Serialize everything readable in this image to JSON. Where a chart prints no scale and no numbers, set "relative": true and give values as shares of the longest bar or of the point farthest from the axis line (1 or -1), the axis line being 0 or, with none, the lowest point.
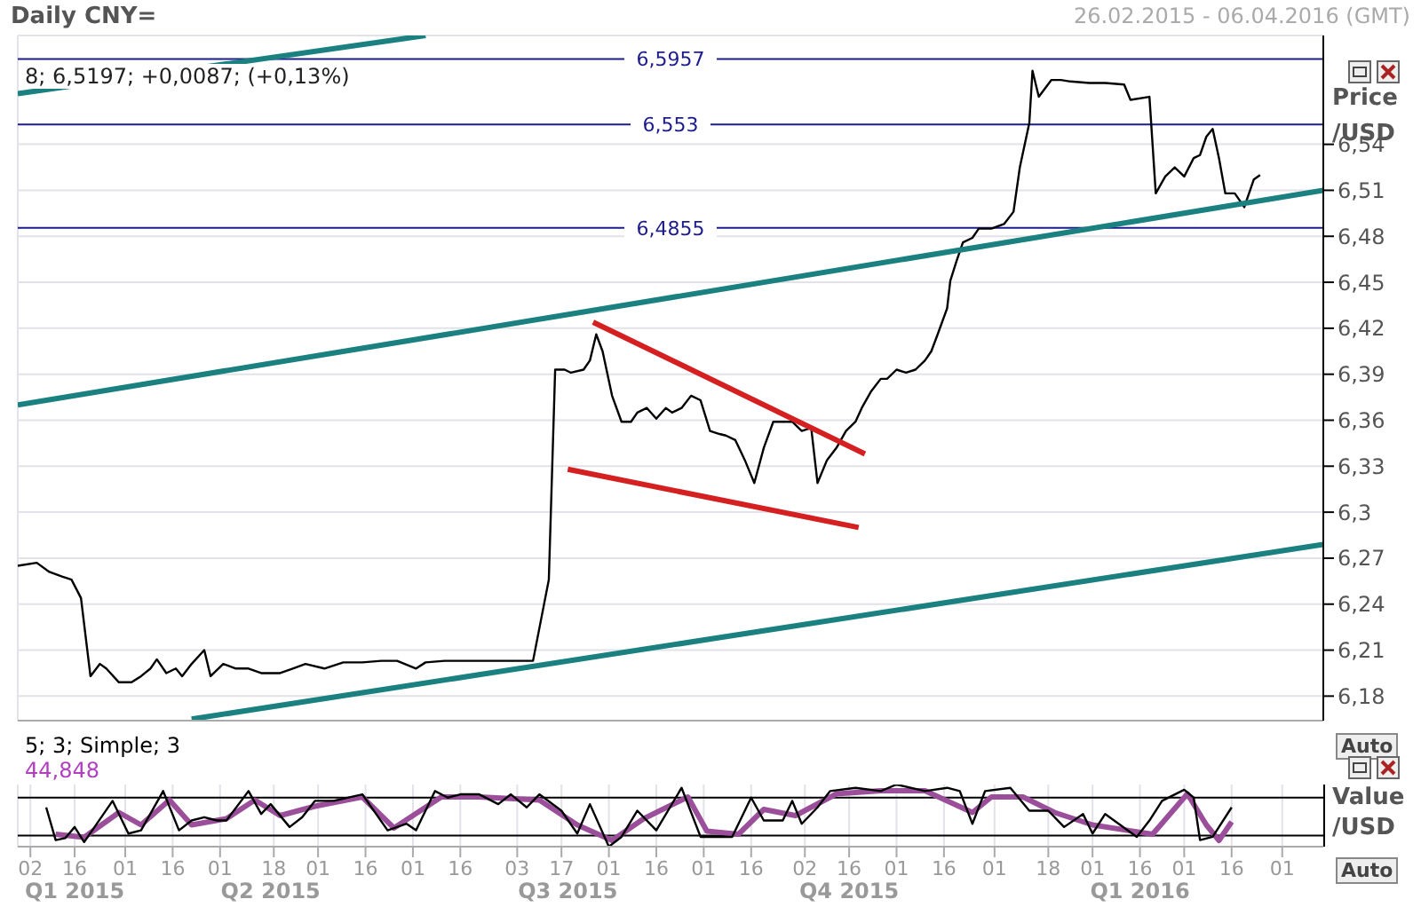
{
  "chart_data": [
    {
      "type": "line",
      "title": "Daily CNY=",
      "subtitle": "26.02.2015 - 06.04.2016 (GMT)",
      "ylabel": "Price /USD",
      "annotations": [
        "8; 6,5197; +0,0087; (+0,13%)",
        "Auto"
      ],
      "xlim": [
        "2015-02-26",
        "2016-04-14"
      ],
      "xticks": [
        {
          "value": "2015-03-02",
          "label": null
        },
        {
          "value": "2015-03-16",
          "label": null
        },
        {
          "value": "2015-04-01",
          "label": null
        },
        {
          "value": "2015-04-16",
          "label": null
        },
        {
          "value": "2015-05-01",
          "label": null
        },
        {
          "value": "2015-05-18",
          "label": null
        },
        {
          "value": "2015-06-01",
          "label": null
        },
        {
          "value": "2015-06-16",
          "label": null
        },
        {
          "value": "2015-07-01",
          "label": null
        },
        {
          "value": "2015-07-16",
          "label": null
        },
        {
          "value": "2015-08-03",
          "label": null
        },
        {
          "value": "2015-08-17",
          "label": null
        },
        {
          "value": "2015-09-01",
          "label": null
        },
        {
          "value": "2015-09-16",
          "label": null
        },
        {
          "value": "2015-10-01",
          "label": null
        },
        {
          "value": "2015-10-16",
          "label": null
        },
        {
          "value": "2015-11-02",
          "label": null
        },
        {
          "value": "2015-11-16",
          "label": null
        },
        {
          "value": "2015-12-01",
          "label": null
        },
        {
          "value": "2015-12-16",
          "label": null
        },
        {
          "value": "2016-01-01",
          "label": null
        },
        {
          "value": "2016-01-18",
          "label": null
        },
        {
          "value": "2016-02-01",
          "label": null
        },
        {
          "value": "2016-02-16",
          "label": null
        },
        {
          "value": "2016-03-01",
          "label": null
        },
        {
          "value": "2016-03-16",
          "label": null
        },
        {
          "value": "2016-04-01",
          "label": null
        }
      ],
      "ylim": [
        6.164,
        6.611
      ],
      "yticks": [
        {
          "value": 6.18,
          "label": "6,18"
        },
        {
          "value": 6.21,
          "label": "6,21"
        },
        {
          "value": 6.24,
          "label": "6,24"
        },
        {
          "value": 6.27,
          "label": "6,27"
        },
        {
          "value": 6.3,
          "label": "6,3"
        },
        {
          "value": 6.33,
          "label": "6,33"
        },
        {
          "value": 6.36,
          "label": "6,36"
        },
        {
          "value": 6.39,
          "label": "6,39"
        },
        {
          "value": 6.42,
          "label": "6,42"
        },
        {
          "value": 6.45,
          "label": "6,45"
        },
        {
          "value": 6.48,
          "label": "6,48"
        },
        {
          "value": 6.51,
          "label": "6,51"
        },
        {
          "value": 6.54,
          "label": "6,54"
        }
      ],
      "tick_labels": "y",
      "grid": true,
      "marker": "none",
      "line_style": "solid",
      "ref_lines": [
        {
          "axis": "y",
          "value": 6.5957,
          "label": "6,5957",
          "color": "#1c1c8c"
        },
        {
          "axis": "y",
          "value": 6.553,
          "label": "6,553",
          "color": "#1c1c8c"
        },
        {
          "axis": "y",
          "value": 6.4855,
          "label": "6,4855",
          "color": "#1c1c8c"
        }
      ],
      "series": [
        {
          "color": "#000000",
          "x": [
            "2015-02-26",
            "2015-03-04",
            "2015-03-08",
            "2015-03-12",
            "2015-03-15",
            "2015-03-18",
            "2015-03-20",
            "2015-03-21",
            "2015-03-24",
            "2015-03-26",
            "2015-03-30",
            "2015-04-03",
            "2015-04-06",
            "2015-04-09",
            "2015-04-11",
            "2015-04-14",
            "2015-04-17",
            "2015-04-19",
            "2015-04-22",
            "2015-04-26",
            "2015-04-28",
            "2015-05-02",
            "2015-05-06",
            "2015-05-10",
            "2015-05-14",
            "2015-05-20",
            "2015-05-24",
            "2015-05-28",
            "2015-06-03",
            "2015-06-09",
            "2015-06-15",
            "2015-06-21",
            "2015-06-26",
            "2015-07-02",
            "2015-07-05",
            "2015-07-11",
            "2015-07-16",
            "2015-07-22",
            "2015-07-28",
            "2015-08-08",
            "2015-08-13",
            "2015-08-15",
            "2015-08-18",
            "2015-08-20",
            "2015-08-24",
            "2015-08-26",
            "2015-08-28",
            "2015-08-30",
            "2015-09-02",
            "2015-09-05",
            "2015-09-08",
            "2015-09-10",
            "2015-09-13",
            "2015-09-16",
            "2015-09-19",
            "2015-09-21",
            "2015-09-24",
            "2015-09-27",
            "2015-09-30",
            "2015-10-03",
            "2015-10-06",
            "2015-10-08",
            "2015-10-11",
            "2015-10-14",
            "2015-10-17",
            "2015-10-20",
            "2015-10-23",
            "2015-10-26",
            "2015-10-29",
            "2015-11-01",
            "2015-11-04",
            "2015-11-06",
            "2015-11-09",
            "2015-11-12",
            "2015-11-15",
            "2015-11-18",
            "2015-11-20",
            "2015-11-23",
            "2015-11-26",
            "2015-11-28",
            "2015-12-01",
            "2015-12-04",
            "2015-12-07",
            "2015-12-10",
            "2015-12-12",
            "2015-12-14",
            "2015-12-17",
            "2015-12-18",
            "2015-12-20",
            "2015-12-22",
            "2015-12-25",
            "2015-12-27",
            "2015-12-31",
            "2016-01-04",
            "2016-01-07",
            "2016-01-09",
            "2016-01-12",
            "2016-01-13",
            "2016-01-15",
            "2016-01-19",
            "2016-01-22",
            "2016-01-25",
            "2016-01-31",
            "2016-02-05",
            "2016-02-11",
            "2016-02-13",
            "2016-02-19",
            "2016-02-21",
            "2016-02-24",
            "2016-02-27",
            "2016-03-01",
            "2016-03-04",
            "2016-03-06",
            "2016-03-08",
            "2016-03-10",
            "2016-03-12",
            "2016-03-14",
            "2016-03-17",
            "2016-03-20",
            "2016-03-23",
            "2016-03-25"
          ],
          "values": [
            6.265,
            6.267,
            6.261,
            6.258,
            6.256,
            6.244,
            6.21,
            6.193,
            6.201,
            6.198,
            6.189,
            6.189,
            6.193,
            6.198,
            6.204,
            6.195,
            6.198,
            6.193,
            6.201,
            6.21,
            6.193,
            6.201,
            6.198,
            6.198,
            6.195,
            6.195,
            6.198,
            6.201,
            6.198,
            6.202,
            6.202,
            6.203,
            6.203,
            6.198,
            6.202,
            6.203,
            6.203,
            6.203,
            6.203,
            6.203,
            6.256,
            6.393,
            6.393,
            6.391,
            6.393,
            6.399,
            6.416,
            6.405,
            6.376,
            6.359,
            6.359,
            6.365,
            6.368,
            6.361,
            6.368,
            6.365,
            6.368,
            6.376,
            6.373,
            6.353,
            6.351,
            6.35,
            6.347,
            6.334,
            6.319,
            6.342,
            6.359,
            6.359,
            6.359,
            6.353,
            6.355,
            6.319,
            6.334,
            6.342,
            6.353,
            6.359,
            6.368,
            6.379,
            6.387,
            6.387,
            6.393,
            6.391,
            6.393,
            6.399,
            6.405,
            6.416,
            6.433,
            6.451,
            6.464,
            6.476,
            6.479,
            6.485,
            6.485,
            6.488,
            6.496,
            6.525,
            6.554,
            6.588,
            6.571,
            6.582,
            6.582,
            6.581,
            6.58,
            6.58,
            6.579,
            6.569,
            6.571,
            6.508,
            6.519,
            6.525,
            6.519,
            6.531,
            6.533,
            6.545,
            6.55,
            6.531,
            6.508,
            6.508,
            6.499,
            6.517,
            6.52
          ]
        },
        {
          "color": "#1a8080",
          "x": [
            "2015-02-26",
            "2015-07-05"
          ],
          "values": [
            6.573,
            6.611
          ]
        },
        {
          "color": "#1a8080",
          "x": [
            "2015-02-26",
            "2016-04-14"
          ],
          "values": [
            6.37,
            6.51
          ]
        },
        {
          "color": "#1a8080",
          "x": [
            "2015-04-22",
            "2016-04-14"
          ],
          "values": [
            6.165,
            6.279
          ]
        },
        {
          "color": "#d42020",
          "x": [
            "2015-08-27",
            "2015-11-21"
          ],
          "values": [
            6.424,
            6.338
          ]
        },
        {
          "color": "#d42020",
          "x": [
            "2015-08-19",
            "2015-11-19"
          ],
          "values": [
            6.328,
            6.29
          ]
        }
      ]
    },
    {
      "type": "line",
      "ylabel": "Value /USD",
      "relative": true,
      "annotations": [
        "5; 3; Simple; 3",
        "44,848",
        "Auto",
        "Q1 2015",
        "Q2 2015",
        "Q3 2015",
        "Q4 2015",
        "Q1 2016"
      ],
      "xlim": [
        "2015-02-26",
        "2016-04-14"
      ],
      "xticks": [
        {
          "value": "2015-03-02",
          "label": "02"
        },
        {
          "value": "2015-03-16",
          "label": "16"
        },
        {
          "value": "2015-04-01",
          "label": "01"
        },
        {
          "value": "2015-04-16",
          "label": "16"
        },
        {
          "value": "2015-05-01",
          "label": "01"
        },
        {
          "value": "2015-05-18",
          "label": "18"
        },
        {
          "value": "2015-06-01",
          "label": "01"
        },
        {
          "value": "2015-06-16",
          "label": "16"
        },
        {
          "value": "2015-07-01",
          "label": "01"
        },
        {
          "value": "2015-07-16",
          "label": "16"
        },
        {
          "value": "2015-08-03",
          "label": "03"
        },
        {
          "value": "2015-08-17",
          "label": "17"
        },
        {
          "value": "2015-09-01",
          "label": "01"
        },
        {
          "value": "2015-09-16",
          "label": "16"
        },
        {
          "value": "2015-10-01",
          "label": "01"
        },
        {
          "value": "2015-10-16",
          "label": "16"
        },
        {
          "value": "2015-11-02",
          "label": "02"
        },
        {
          "value": "2015-11-16",
          "label": "16"
        },
        {
          "value": "2015-12-01",
          "label": "01"
        },
        {
          "value": "2015-12-16",
          "label": "16"
        },
        {
          "value": "2016-01-01",
          "label": "01"
        },
        {
          "value": "2016-01-18",
          "label": "18"
        },
        {
          "value": "2016-02-01",
          "label": "01"
        },
        {
          "value": "2016-02-16",
          "label": "16"
        },
        {
          "value": "2016-03-01",
          "label": "01"
        },
        {
          "value": "2016-03-16",
          "label": "16"
        },
        {
          "value": "2016-04-01",
          "label": "01"
        }
      ],
      "tick_labels": "x",
      "grid": "x",
      "marker": "none",
      "line_style": "solid",
      "ref_lines": [
        {
          "axis": "y",
          "value": 0.789,
          "color": "#000000"
        },
        {
          "axis": "y",
          "value": 0.179,
          "color": "#000000"
        }
      ],
      "series": [
        {
          "color": "#9b4f9b",
          "x": [
            "2015-03-10",
            "2015-03-19",
            "2015-03-30",
            "2015-04-06",
            "2015-04-15",
            "2015-04-22",
            "2015-05-03",
            "2015-05-12",
            "2015-05-20",
            "2015-05-31",
            "2015-06-15",
            "2015-06-25",
            "2015-07-10",
            "2015-07-22",
            "2015-08-10",
            "2015-08-22",
            "2015-09-02",
            "2015-09-12",
            "2015-09-26",
            "2015-10-02",
            "2015-10-12",
            "2015-10-20",
            "2015-10-30",
            "2015-11-12",
            "2015-11-26",
            "2015-12-10",
            "2015-12-25",
            "2015-12-31",
            "2016-01-10",
            "2016-01-20",
            "2016-02-01",
            "2016-02-20",
            "2016-03-02",
            "2016-03-08",
            "2016-03-12",
            "2016-03-16"
          ],
          "values": [
            0.2,
            0.15,
            0.55,
            0.35,
            0.75,
            0.35,
            0.45,
            0.75,
            0.5,
            0.65,
            0.8,
            0.3,
            0.8,
            0.8,
            0.75,
            0.35,
            0.1,
            0.45,
            0.8,
            0.25,
            0.2,
            0.6,
            0.5,
            0.85,
            0.9,
            0.9,
            0.55,
            0.8,
            0.8,
            0.55,
            0.35,
            0.2,
            0.85,
            0.35,
            0.1,
            0.4
          ]
        },
        {
          "color": "#000000",
          "x": [
            "2015-03-07",
            "2015-03-10",
            "2015-03-13",
            "2015-03-16",
            "2015-03-19",
            "2015-03-28",
            "2015-04-02",
            "2015-04-06",
            "2015-04-13",
            "2015-04-18",
            "2015-04-22",
            "2015-04-26",
            "2015-04-30",
            "2015-05-03",
            "2015-05-10",
            "2015-05-14",
            "2015-05-17",
            "2015-05-23",
            "2015-05-27",
            "2015-05-31",
            "2015-06-06",
            "2015-06-15",
            "2015-06-23",
            "2015-06-29",
            "2015-07-02",
            "2015-07-08",
            "2015-07-12",
            "2015-07-16",
            "2015-07-22",
            "2015-07-28",
            "2015-08-01",
            "2015-08-06",
            "2015-08-10",
            "2015-08-17",
            "2015-08-22",
            "2015-08-26",
            "2015-09-01",
            "2015-09-05",
            "2015-09-10",
            "2015-09-16",
            "2015-09-24",
            "2015-09-30",
            "2015-10-10",
            "2015-10-16",
            "2015-10-20",
            "2015-10-26",
            "2015-10-29",
            "2015-11-01",
            "2015-11-06",
            "2015-11-10",
            "2015-11-18",
            "2015-11-26",
            "2015-12-01",
            "2015-12-10",
            "2015-12-17",
            "2015-12-21",
            "2015-12-25",
            "2015-12-29",
            "2016-01-06",
            "2016-01-12",
            "2016-01-18",
            "2016-01-23",
            "2016-01-29",
            "2016-02-01",
            "2016-02-05",
            "2016-02-15",
            "2016-02-19",
            "2016-02-23",
            "2016-03-01",
            "2016-03-04",
            "2016-03-06",
            "2016-03-10",
            "2016-03-16"
          ],
          "values": [
            0.632,
            0.105,
            0.137,
            0.316,
            0.074,
            0.737,
            0.211,
            0.263,
            0.895,
            0.263,
            0.421,
            0.474,
            0.421,
            0.421,
            0.895,
            0.526,
            0.684,
            0.316,
            0.474,
            0.737,
            0.737,
            0.842,
            0.263,
            0.368,
            0.263,
            0.895,
            0.789,
            0.842,
            0.842,
            0.684,
            0.842,
            0.632,
            0.842,
            0.579,
            0.211,
            0.684,
            0,
            0.158,
            0.579,
            0.263,
            0.947,
            0.158,
            0.158,
            0.789,
            0.421,
            0.421,
            0.737,
            0.368,
            0.632,
            0.895,
            0.947,
            0.895,
            1,
            0.895,
            0.947,
            0.895,
            0.368,
            0.895,
            0.947,
            0.579,
            0.579,
            0.316,
            0.526,
            0.211,
            0.526,
            0.158,
            0.421,
            0.737,
            0.916,
            0.789,
            0.105,
            0.158,
            0.632
          ]
        }
      ]
    }
  ]
}
